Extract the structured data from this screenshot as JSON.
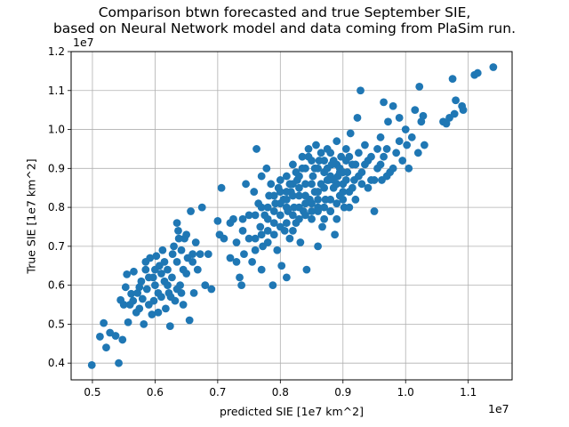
{
  "chart_data": {
    "type": "scatter",
    "title": "Comparison btwn forecasted and true September SIE,",
    "subtitle": "based on Neural Network model and data coming from PlaSim run.",
    "xlabel": "predicted SIE [1e7 km^2]",
    "ylabel": "True SIE [1e7 km^2]",
    "x_offset_label": "1e7",
    "y_offset_label": "1e7",
    "xlim": [
      0.466,
      1.17
    ],
    "ylim": [
      0.357,
      1.2
    ],
    "xticks": [
      0.5,
      0.6,
      0.7,
      0.8,
      0.9,
      1.0,
      1.1
    ],
    "yticks": [
      0.4,
      0.5,
      0.6,
      0.7,
      0.8,
      0.9,
      1.0,
      1.1,
      1.2
    ],
    "xtick_labels": [
      "0.5",
      "0.6",
      "0.7",
      "0.8",
      "0.9",
      "1.0",
      "1.1"
    ],
    "ytick_labels": [
      "0.4",
      "0.5",
      "0.6",
      "0.7",
      "0.8",
      "0.9",
      "1.0",
      "1.1",
      "1.2"
    ],
    "grid": true,
    "point_color": "#1f77b4",
    "points": [
      [
        0.499,
        0.395
      ],
      [
        0.512,
        0.468
      ],
      [
        0.518,
        0.503
      ],
      [
        0.522,
        0.44
      ],
      [
        0.528,
        0.478
      ],
      [
        0.537,
        0.47
      ],
      [
        0.542,
        0.4
      ],
      [
        0.548,
        0.46
      ],
      [
        0.545,
        0.562
      ],
      [
        0.55,
        0.55
      ],
      [
        0.553,
        0.595
      ],
      [
        0.557,
        0.505
      ],
      [
        0.555,
        0.628
      ],
      [
        0.56,
        0.55
      ],
      [
        0.562,
        0.578
      ],
      [
        0.566,
        0.635
      ],
      [
        0.57,
        0.53
      ],
      [
        0.572,
        0.58
      ],
      [
        0.575,
        0.54
      ],
      [
        0.578,
        0.61
      ],
      [
        0.58,
        0.565
      ],
      [
        0.582,
        0.5
      ],
      [
        0.585,
        0.64
      ],
      [
        0.587,
        0.59
      ],
      [
        0.59,
        0.55
      ],
      [
        0.592,
        0.67
      ],
      [
        0.595,
        0.525
      ],
      [
        0.597,
        0.62
      ],
      [
        0.6,
        0.6
      ],
      [
        0.602,
        0.675
      ],
      [
        0.605,
        0.53
      ],
      [
        0.607,
        0.65
      ],
      [
        0.61,
        0.57
      ],
      [
        0.612,
        0.69
      ],
      [
        0.615,
        0.61
      ],
      [
        0.617,
        0.54
      ],
      [
        0.62,
        0.64
      ],
      [
        0.622,
        0.58
      ],
      [
        0.624,
        0.495
      ],
      [
        0.627,
        0.62
      ],
      [
        0.63,
        0.7
      ],
      [
        0.632,
        0.56
      ],
      [
        0.635,
        0.66
      ],
      [
        0.637,
        0.74
      ],
      [
        0.64,
        0.6
      ],
      [
        0.642,
        0.69
      ],
      [
        0.645,
        0.55
      ],
      [
        0.647,
        0.72
      ],
      [
        0.65,
        0.63
      ],
      [
        0.652,
        0.67
      ],
      [
        0.655,
        0.51
      ],
      [
        0.657,
        0.79
      ],
      [
        0.66,
        0.68
      ],
      [
        0.662,
        0.58
      ],
      [
        0.665,
        0.71
      ],
      [
        0.668,
        0.64
      ],
      [
        0.675,
        0.8
      ],
      [
        0.68,
        0.6
      ],
      [
        0.685,
        0.68
      ],
      [
        0.69,
        0.59
      ],
      [
        0.575,
        0.595
      ],
      [
        0.59,
        0.62
      ],
      [
        0.598,
        0.56
      ],
      [
        0.61,
        0.63
      ],
      [
        0.62,
        0.6
      ],
      [
        0.635,
        0.59
      ],
      [
        0.645,
        0.64
      ],
      [
        0.605,
        0.58
      ],
      [
        0.615,
        0.66
      ],
      [
        0.565,
        0.56
      ],
      [
        0.635,
        0.76
      ],
      [
        0.65,
        0.73
      ],
      [
        0.638,
        0.72
      ],
      [
        0.66,
        0.66
      ],
      [
        0.628,
        0.68
      ],
      [
        0.672,
        0.68
      ],
      [
        0.585,
        0.66
      ],
      [
        0.6,
        0.64
      ],
      [
        0.625,
        0.57
      ],
      [
        0.642,
        0.58
      ],
      [
        0.7,
        0.765
      ],
      [
        0.703,
        0.73
      ],
      [
        0.706,
        0.85
      ],
      [
        0.71,
        0.72
      ],
      [
        0.72,
        0.67
      ],
      [
        0.725,
        0.77
      ],
      [
        0.73,
        0.71
      ],
      [
        0.735,
        0.62
      ],
      [
        0.738,
        0.6
      ],
      [
        0.74,
        0.74
      ],
      [
        0.742,
        0.68
      ],
      [
        0.745,
        0.86
      ],
      [
        0.75,
        0.78
      ],
      [
        0.755,
        0.66
      ],
      [
        0.758,
        0.84
      ],
      [
        0.76,
        0.72
      ],
      [
        0.762,
        0.95
      ],
      [
        0.765,
        0.81
      ],
      [
        0.768,
        0.75
      ],
      [
        0.77,
        0.88
      ],
      [
        0.772,
        0.7
      ],
      [
        0.775,
        0.78
      ],
      [
        0.778,
        0.9
      ],
      [
        0.78,
        0.74
      ],
      [
        0.782,
        0.83
      ],
      [
        0.785,
        0.86
      ],
      [
        0.788,
        0.6
      ],
      [
        0.79,
        0.76
      ],
      [
        0.792,
        0.81
      ],
      [
        0.795,
        0.69
      ],
      [
        0.797,
        0.85
      ],
      [
        0.8,
        0.78
      ],
      [
        0.802,
        0.65
      ],
      [
        0.805,
        0.82
      ],
      [
        0.807,
        0.74
      ],
      [
        0.81,
        0.88
      ],
      [
        0.812,
        0.79
      ],
      [
        0.815,
        0.72
      ],
      [
        0.817,
        0.84
      ],
      [
        0.82,
        0.91
      ],
      [
        0.822,
        0.8
      ],
      [
        0.825,
        0.76
      ],
      [
        0.827,
        0.87
      ],
      [
        0.83,
        0.83
      ],
      [
        0.832,
        0.71
      ],
      [
        0.835,
        0.9
      ],
      [
        0.837,
        0.79
      ],
      [
        0.84,
        0.86
      ],
      [
        0.842,
        0.64
      ],
      [
        0.845,
        0.93
      ],
      [
        0.847,
        0.82
      ],
      [
        0.85,
        0.77
      ],
      [
        0.852,
        0.88
      ],
      [
        0.855,
        0.84
      ],
      [
        0.857,
        0.96
      ],
      [
        0.86,
        0.8
      ],
      [
        0.862,
        0.92
      ],
      [
        0.865,
        0.86
      ],
      [
        0.867,
        0.75
      ],
      [
        0.87,
        0.89
      ],
      [
        0.872,
        0.82
      ],
      [
        0.875,
        0.95
      ],
      [
        0.877,
        0.87
      ],
      [
        0.88,
        0.79
      ],
      [
        0.882,
        0.91
      ],
      [
        0.885,
        0.85
      ],
      [
        0.887,
        0.73
      ],
      [
        0.89,
        0.97
      ],
      [
        0.892,
        0.88
      ],
      [
        0.895,
        0.83
      ],
      [
        0.897,
        0.93
      ],
      [
        0.9,
        0.86
      ],
      [
        0.902,
        0.8
      ],
      [
        0.905,
        0.95
      ],
      [
        0.907,
        0.89
      ],
      [
        0.91,
        0.84
      ],
      [
        0.912,
        0.99
      ],
      [
        0.915,
        0.91
      ],
      [
        0.918,
        0.87
      ],
      [
        0.92,
        0.82
      ],
      [
        0.923,
        1.03
      ],
      [
        0.925,
        0.94
      ],
      [
        0.928,
        1.1
      ],
      [
        0.93,
        0.89
      ],
      [
        0.935,
        0.96
      ],
      [
        0.94,
        0.85
      ],
      [
        0.945,
        0.93
      ],
      [
        0.95,
        0.79
      ],
      [
        0.955,
        0.9
      ],
      [
        0.96,
        0.98
      ],
      [
        0.962,
        0.87
      ],
      [
        0.965,
        1.07
      ],
      [
        0.97,
        0.95
      ],
      [
        0.972,
        1.02
      ],
      [
        0.975,
        0.89
      ],
      [
        0.98,
        1.06
      ],
      [
        0.985,
        0.94
      ],
      [
        0.99,
        1.03
      ],
      [
        0.995,
        0.92
      ],
      [
        1.0,
        1.0
      ],
      [
        1.002,
        0.96
      ],
      [
        1.005,
        0.9
      ],
      [
        1.01,
        0.98
      ],
      [
        1.015,
        1.05
      ],
      [
        1.02,
        0.94
      ],
      [
        1.022,
        1.11
      ],
      [
        1.025,
        1.02
      ],
      [
        1.03,
        0.96
      ],
      [
        1.06,
        1.02
      ],
      [
        1.07,
        1.03
      ],
      [
        1.075,
        1.13
      ],
      [
        1.08,
        1.075
      ],
      [
        1.09,
        1.06
      ],
      [
        1.092,
        1.05
      ],
      [
        1.11,
        1.14
      ],
      [
        1.115,
        1.145
      ],
      [
        1.14,
        1.16
      ],
      [
        1.078,
        1.04
      ],
      [
        1.065,
        1.015
      ],
      [
        1.028,
        1.035
      ],
      [
        0.78,
        0.8
      ],
      [
        0.79,
        0.83
      ],
      [
        0.8,
        0.81
      ],
      [
        0.81,
        0.76
      ],
      [
        0.82,
        0.83
      ],
      [
        0.83,
        0.8
      ],
      [
        0.84,
        0.78
      ],
      [
        0.85,
        0.81
      ],
      [
        0.86,
        0.84
      ],
      [
        0.87,
        0.85
      ],
      [
        0.88,
        0.82
      ],
      [
        0.89,
        0.86
      ],
      [
        0.8,
        0.84
      ],
      [
        0.81,
        0.82
      ],
      [
        0.82,
        0.78
      ],
      [
        0.83,
        0.85
      ],
      [
        0.84,
        0.83
      ],
      [
        0.85,
        0.86
      ],
      [
        0.86,
        0.79
      ],
      [
        0.87,
        0.8
      ],
      [
        0.88,
        0.88
      ],
      [
        0.89,
        0.81
      ],
      [
        0.9,
        0.84
      ],
      [
        0.76,
        0.78
      ],
      [
        0.77,
        0.8
      ],
      [
        0.78,
        0.77
      ],
      [
        0.79,
        0.73
      ],
      [
        0.8,
        0.75
      ],
      [
        0.81,
        0.8
      ],
      [
        0.82,
        0.86
      ],
      [
        0.83,
        0.88
      ],
      [
        0.84,
        0.9
      ],
      [
        0.85,
        0.92
      ],
      [
        0.86,
        0.9
      ],
      [
        0.87,
        0.92
      ],
      [
        0.88,
        0.94
      ],
      [
        0.89,
        0.91
      ],
      [
        0.9,
        0.89
      ],
      [
        0.91,
        0.93
      ],
      [
        0.92,
        0.91
      ],
      [
        0.84,
        0.81
      ],
      [
        0.85,
        0.79
      ],
      [
        0.86,
        0.82
      ],
      [
        0.87,
        0.77
      ],
      [
        0.88,
        0.79
      ],
      [
        0.89,
        0.77
      ],
      [
        0.9,
        0.82
      ],
      [
        0.91,
        0.8
      ],
      [
        0.83,
        0.77
      ],
      [
        0.82,
        0.74
      ],
      [
        0.81,
        0.84
      ],
      [
        0.8,
        0.87
      ],
      [
        0.79,
        0.79
      ],
      [
        0.78,
        0.71
      ],
      [
        0.77,
        0.73
      ],
      [
        0.76,
        0.69
      ],
      [
        0.75,
        0.72
      ],
      [
        0.74,
        0.77
      ],
      [
        0.73,
        0.66
      ],
      [
        0.72,
        0.76
      ],
      [
        0.77,
        0.64
      ],
      [
        0.81,
        0.62
      ],
      [
        0.86,
        0.7
      ],
      [
        0.93,
        0.86
      ],
      [
        0.94,
        0.92
      ],
      [
        0.95,
        0.87
      ],
      [
        0.96,
        0.91
      ],
      [
        0.97,
        0.88
      ],
      [
        0.98,
        0.9
      ],
      [
        0.99,
        0.97
      ],
      [
        0.875,
        0.9
      ],
      [
        0.885,
        0.87
      ],
      [
        0.895,
        0.89
      ],
      [
        0.905,
        0.87
      ],
      [
        0.915,
        0.85
      ],
      [
        0.925,
        0.88
      ],
      [
        0.935,
        0.91
      ],
      [
        0.945,
        0.87
      ],
      [
        0.955,
        0.95
      ],
      [
        0.965,
        0.93
      ],
      [
        0.835,
        0.93
      ],
      [
        0.845,
        0.95
      ],
      [
        0.855,
        0.9
      ],
      [
        0.865,
        0.94
      ],
      [
        0.875,
        0.87
      ],
      [
        0.885,
        0.92
      ],
      [
        0.895,
        0.9
      ],
      [
        0.905,
        0.92
      ],
      [
        0.825,
        0.89
      ],
      [
        0.815,
        0.86
      ]
    ]
  }
}
